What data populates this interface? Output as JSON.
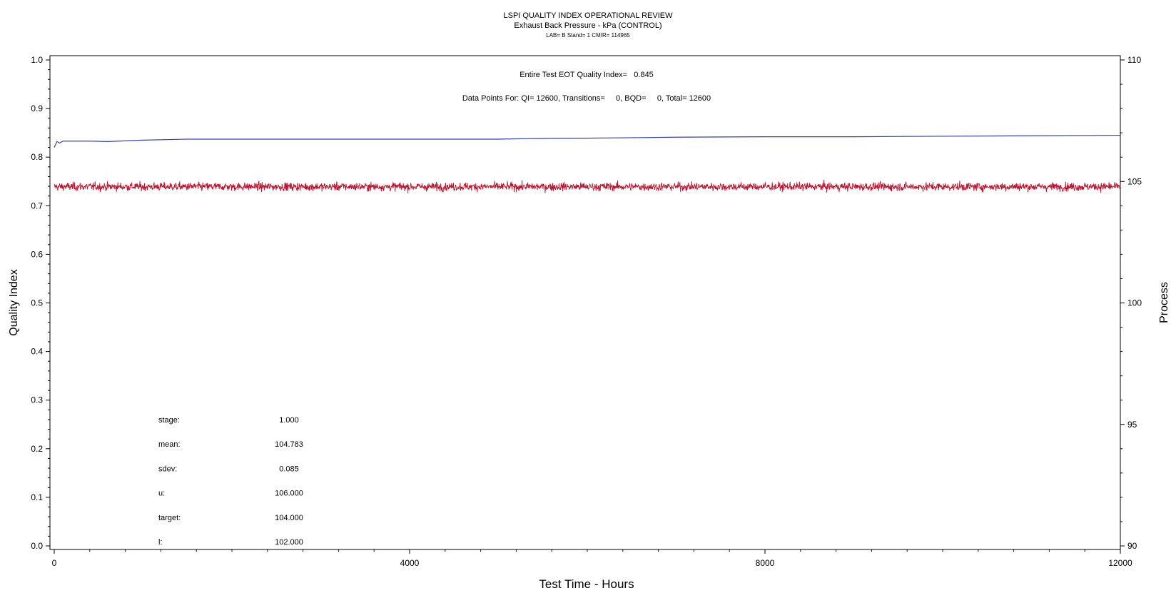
{
  "chart_data": {
    "type": "line",
    "title": "LSPI QUALITY INDEX OPERATIONAL REVIEW",
    "subtitle": "Exhaust Back Pressure - kPa (CONTROL)",
    "subtitle2": "LAB= B Stand= 1 CMIR= 114965",
    "xlabel": "Test Time - Hours",
    "ylabel_left": "Quality Index",
    "ylabel_right": "Process",
    "xlim": [
      0,
      12000
    ],
    "ylim_left": [
      0.0,
      1.0
    ],
    "ylim_right": [
      90,
      110
    ],
    "x_ticks": [
      0,
      4000,
      8000,
      12000
    ],
    "x_minor_step": 400,
    "left_ticks": [
      "0.0",
      "0.1",
      "0.2",
      "0.3",
      "0.4",
      "0.5",
      "0.6",
      "0.7",
      "0.8",
      "0.9",
      "1.0"
    ],
    "right_ticks": [
      "90",
      "95",
      "100",
      "105",
      "110"
    ],
    "annotations": {
      "eot_line": "Entire Test EOT Quality Index=   0.845",
      "data_points_line": "Data Points For: QI= 12600, Transitions=     0, BQD=     0, Total= 12600"
    },
    "stats": [
      {
        "label": "stage:",
        "value": "1.000"
      },
      {
        "label": "mean:",
        "value": "104.783"
      },
      {
        "label": "sdev:",
        "value": "0.085"
      },
      {
        "label": "u:",
        "value": "106.000"
      },
      {
        "label": "target:",
        "value": "104.000"
      },
      {
        "label": "l:",
        "value": "102.000"
      }
    ],
    "series": [
      {
        "axis": "left",
        "color": "#3340c0",
        "x": [
          0,
          30,
          60,
          100,
          200,
          400,
          600,
          1000,
          1500,
          2000,
          3000,
          4000,
          5000,
          5300,
          6000,
          6500,
          7000,
          8000,
          9000,
          10000,
          11000,
          12000
        ],
        "y": [
          0.82,
          0.832,
          0.829,
          0.833,
          0.833,
          0.833,
          0.832,
          0.835,
          0.837,
          0.837,
          0.837,
          0.837,
          0.837,
          0.838,
          0.839,
          0.84,
          0.841,
          0.842,
          0.842,
          0.843,
          0.844,
          0.845
        ]
      },
      {
        "axis": "right",
        "color": "#c0122e",
        "mean": 104.783,
        "sdev": 0.085,
        "n_points": 12600,
        "x_range": [
          0,
          12000
        ]
      }
    ]
  }
}
